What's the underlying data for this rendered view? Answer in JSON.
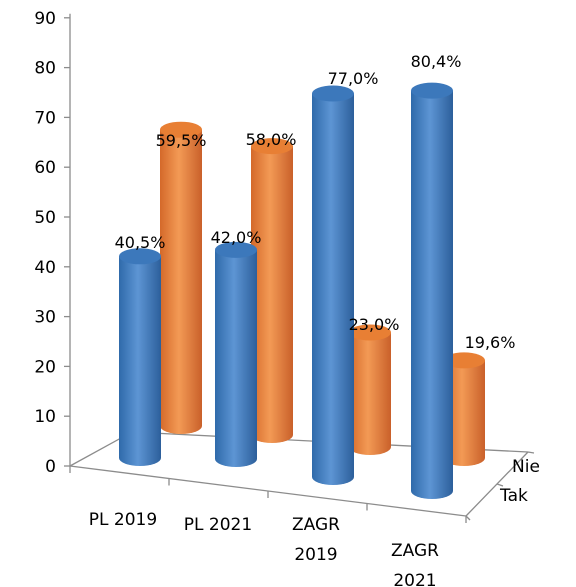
{
  "chart_data": {
    "type": "bar",
    "style": "3d-cylinder",
    "categories": [
      "PL 2019",
      "PL 2021",
      "ZAGR\n2019",
      "ZAGR\n2021"
    ],
    "series": [
      {
        "name": "Tak",
        "values": [
          40.5,
          42.0,
          77.0,
          80.4
        ],
        "labels": [
          "40,5%",
          "42,0%",
          "77,0%",
          "80,4%"
        ],
        "color": "#4f86c6"
      },
      {
        "name": "Nie",
        "values": [
          59.5,
          58.0,
          23.0,
          19.6
        ],
        "labels": [
          "59,5%",
          "58,0%",
          "23,0%",
          "19,6%"
        ],
        "color": "#f08b3f"
      }
    ],
    "yticks": [
      "0",
      "10",
      "20",
      "30",
      "40",
      "50",
      "60",
      "70",
      "80",
      "90"
    ],
    "ylim": [
      0,
      90
    ],
    "title": "",
    "xlabel": "",
    "ylabel": ""
  }
}
